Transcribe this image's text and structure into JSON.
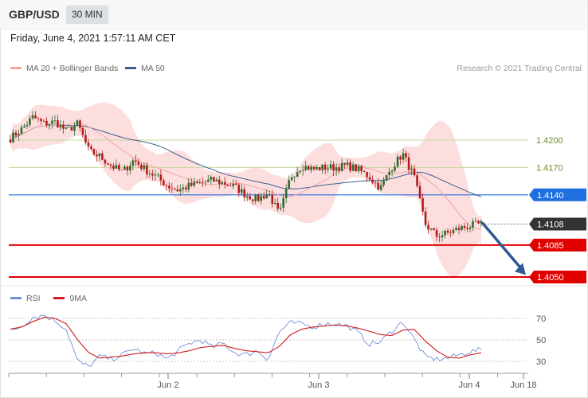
{
  "header": {
    "symbol": "GBP/USD",
    "timeframe": "30 MIN",
    "timestamp": "Friday, June 4, 2021 1:57:11 AM CET"
  },
  "legend": {
    "ma20_label": "MA 20 + Bollinger Bands",
    "ma50_label": "MA 50",
    "credit": "Research © 2021 Trading Central"
  },
  "rsi_legend": {
    "rsi_label": "RSI",
    "ma9_label": "9MA"
  },
  "colors": {
    "up_candle": "#2f6b2f",
    "down_candle": "#b31b1b",
    "bollinger_fill": "#fcdede",
    "ma20": "#f3a5a5",
    "ma50": "#3d5f8f",
    "resistance_line": "#c5d89a",
    "pivot_line": "#1f6fe0",
    "support_line": "#e00000",
    "rsi_line": "#6f8fd6",
    "rsi_ma_line": "#d11a1a",
    "arrow": "#2f5a94"
  },
  "chart_data": {
    "type": "candlestick",
    "x_tick_labels": [
      "Jun 2",
      "Jun 3",
      "Jun 4",
      "Jun 18"
    ],
    "y_range": [
      1.404,
      1.4225
    ],
    "levels": [
      {
        "value": 1.42,
        "label": "1.4200",
        "kind": "resistance"
      },
      {
        "value": 1.417,
        "label": "1.4170",
        "kind": "resistance"
      },
      {
        "value": 1.414,
        "label": "1.4140",
        "kind": "pivot"
      },
      {
        "value": 1.4108,
        "label": "1.4108",
        "kind": "last"
      },
      {
        "value": 1.4085,
        "label": "1.4085",
        "kind": "support"
      },
      {
        "value": 1.405,
        "label": "1.4050",
        "kind": "support"
      }
    ],
    "close_path": [
      1.4202,
      1.4212,
      1.4225,
      1.4218,
      1.422,
      1.421,
      1.4218,
      1.4188,
      1.4182,
      1.4172,
      1.4165,
      1.4178,
      1.4168,
      1.416,
      1.415,
      1.4145,
      1.415,
      1.4153,
      1.4156,
      1.4153,
      1.4149,
      1.414,
      1.4135,
      1.4142,
      1.4118,
      1.416,
      1.4172,
      1.4168,
      1.417,
      1.417,
      1.4172,
      1.4168,
      1.416,
      1.4147,
      1.417,
      1.4185,
      1.416,
      1.4108,
      1.4095,
      1.4098,
      1.4103,
      1.4106,
      1.4108
    ],
    "rsi": {
      "ticks": [
        30,
        50,
        70
      ],
      "rsi_path": [
        58,
        63,
        71,
        73,
        68,
        60,
        30,
        25,
        35,
        32,
        36,
        42,
        37,
        38,
        32,
        40,
        47,
        50,
        43,
        47,
        38,
        36,
        40,
        32,
        58,
        66,
        65,
        62,
        65,
        65,
        63,
        57,
        46,
        48,
        58,
        67,
        51,
        34,
        32,
        33,
        36,
        39,
        41
      ],
      "ma9_path": [
        60,
        62,
        67,
        71,
        70,
        65,
        50,
        38,
        33,
        34,
        35,
        37,
        38,
        38,
        37,
        38,
        40,
        43,
        44,
        45,
        42,
        40,
        39,
        38,
        44,
        55,
        60,
        62,
        63,
        64,
        63,
        61,
        58,
        55,
        54,
        59,
        60,
        49,
        40,
        34,
        33,
        36,
        38
      ]
    }
  }
}
